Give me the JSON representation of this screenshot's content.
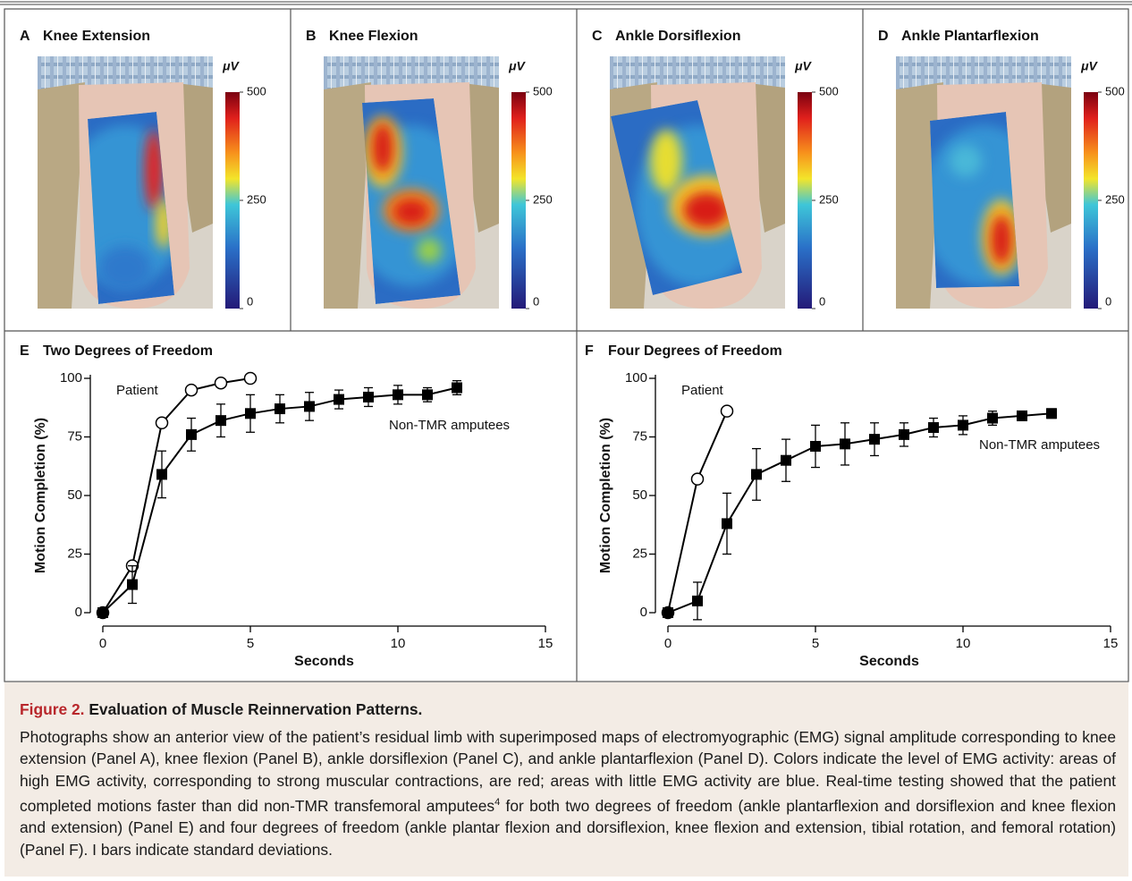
{
  "panels": [
    {
      "letter": "A",
      "title": "Knee Extension",
      "unit": "μV",
      "lim": [
        0,
        500
      ],
      "ticks": [
        0,
        250,
        500
      ]
    },
    {
      "letter": "B",
      "title": "Knee Flexion",
      "unit": "μV",
      "lim": [
        0,
        500
      ],
      "ticks": [
        0,
        250,
        500
      ]
    },
    {
      "letter": "C",
      "title": "Ankle Dorsiflexion",
      "unit": "μV",
      "lim": [
        0,
        500
      ],
      "ticks": [
        0,
        250,
        500
      ]
    },
    {
      "letter": "D",
      "title": "Ankle Plantarflexion",
      "unit": "μV",
      "lim": [
        0,
        500
      ],
      "ticks": [
        0,
        250,
        500
      ]
    }
  ],
  "chart_data": [
    {
      "type": "line",
      "letter": "E",
      "title": "Two Degrees of Freedom",
      "x_label": "Seconds",
      "y_label": "Motion Completion (%)",
      "xlim": [
        0,
        15
      ],
      "xticks": [
        0,
        5,
        10,
        15
      ],
      "ylim": [
        0,
        100
      ],
      "yticks": [
        0,
        25,
        50,
        75,
        100
      ],
      "series": [
        {
          "name": "Patient",
          "marker": "open-circle",
          "color": "#000000",
          "x": [
            0,
            1,
            2,
            3,
            4,
            5
          ],
          "values": [
            0,
            20,
            81,
            95,
            98,
            100
          ]
        },
        {
          "name": "Non-TMR amputees",
          "marker": "square",
          "color": "#000000",
          "x": [
            0,
            1,
            2,
            3,
            4,
            5,
            6,
            7,
            8,
            9,
            10,
            11,
            12
          ],
          "values": [
            0,
            12,
            59,
            76,
            82,
            85,
            87,
            88,
            91,
            92,
            93,
            93,
            96
          ],
          "errors": [
            0,
            8,
            10,
            7,
            7,
            8,
            6,
            6,
            4,
            4,
            4,
            3,
            3
          ]
        }
      ]
    },
    {
      "type": "line",
      "letter": "F",
      "title": "Four Degrees of Freedom",
      "x_label": "Seconds",
      "y_label": "Motion Completion (%)",
      "xlim": [
        0,
        15
      ],
      "xticks": [
        0,
        5,
        10,
        15
      ],
      "ylim": [
        0,
        100
      ],
      "yticks": [
        0,
        25,
        50,
        75,
        100
      ],
      "series": [
        {
          "name": "Patient",
          "marker": "open-circle",
          "color": "#000000",
          "x": [
            0,
            1,
            2
          ],
          "values": [
            0,
            57,
            86
          ]
        },
        {
          "name": "Non-TMR amputees",
          "marker": "square",
          "color": "#000000",
          "x": [
            0,
            1,
            2,
            3,
            4,
            5,
            6,
            7,
            8,
            9,
            10,
            11,
            12,
            13
          ],
          "values": [
            0,
            5,
            38,
            59,
            65,
            71,
            72,
            74,
            76,
            79,
            80,
            83,
            84,
            85
          ],
          "errors": [
            0,
            8,
            13,
            11,
            9,
            9,
            9,
            7,
            5,
            4,
            4,
            3,
            2,
            2
          ]
        }
      ]
    }
  ],
  "caption": {
    "label": "Figure 2.",
    "title": "Evaluation of Muscle Reinnervation Patterns.",
    "body": [
      "Photographs show an anterior view of the patient’s residual limb with superimposed maps of electromyographic (EMG) signal amplitude corresponding to knee extension (Panel A), knee flexion (Panel B), ankle dorsiflexion (Panel C), and ankle plantarflexion (Panel D). Colors indicate the level of EMG activity: areas of high EMG activity, corresponding to strong muscular contractions, are red; areas with little EMG activity are blue. Real-time testing showed that the patient completed motions faster than did non-TMR transfemoral amputees",
      "4",
      " for both two degrees of freedom (ankle plantarflexion and dorsiflexion and knee flexion and extension) (Panel E) and four degrees of freedom (ankle plantar flexion and dorsiflexion, knee flexion and extension, tibial rotation, and femoral rotation) (Panel F). I bars indicate standard deviations."
    ]
  }
}
